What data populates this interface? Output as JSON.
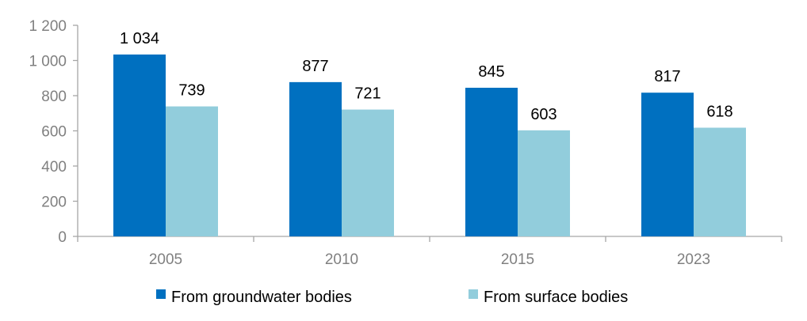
{
  "chart_data": {
    "type": "bar",
    "categories": [
      "2005",
      "2010",
      "2015",
      "2023"
    ],
    "series": [
      {
        "name": "From groundwater bodies",
        "color": "#0070C0",
        "values": [
          1034,
          877,
          845,
          817
        ],
        "labels": [
          "1 034",
          "877",
          "845",
          "817"
        ]
      },
      {
        "name": "From surface bodies",
        "color": "#92CDDC",
        "values": [
          739,
          721,
          603,
          618
        ],
        "labels": [
          "739",
          "721",
          "603",
          "618"
        ]
      }
    ],
    "ylim": [
      0,
      1200
    ],
    "yticks": [
      0,
      200,
      400,
      600,
      800,
      1000,
      1200
    ],
    "ytick_labels": [
      "0",
      "200",
      "400",
      "600",
      "800",
      "1 000",
      "1 200"
    ],
    "grid": false,
    "legend_position": "bottom"
  }
}
